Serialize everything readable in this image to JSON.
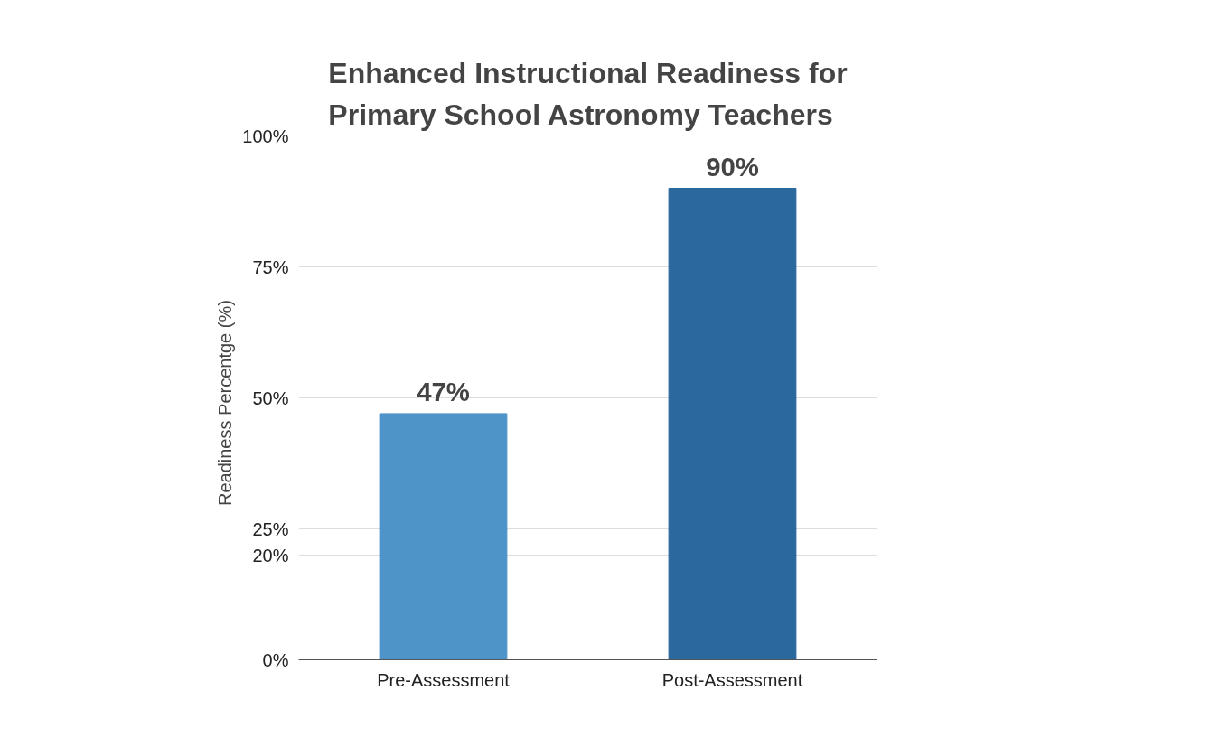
{
  "chart_data": {
    "type": "bar",
    "title": "Enhanced Instructional Readiness for\nPrimary School Astronomy Teachers",
    "ylabel": "Readiness  Percentge  (%)",
    "categories": [
      "Pre-Assessment",
      "Post-Assessment"
    ],
    "values": [
      47,
      90
    ],
    "colors": [
      "#4f94c9",
      "#2b689e"
    ],
    "value_labels": [
      "47%",
      "90%"
    ],
    "ylim": [
      0,
      100
    ],
    "yticks": [
      {
        "value": 0,
        "label": "0%"
      },
      {
        "value": 20,
        "label": "20%"
      },
      {
        "value": 25,
        "label": "25%"
      },
      {
        "value": 50,
        "label": "50%"
      },
      {
        "value": 75,
        "label": "75%"
      },
      {
        "value": 100,
        "label": "100%"
      }
    ],
    "grid": "y"
  }
}
